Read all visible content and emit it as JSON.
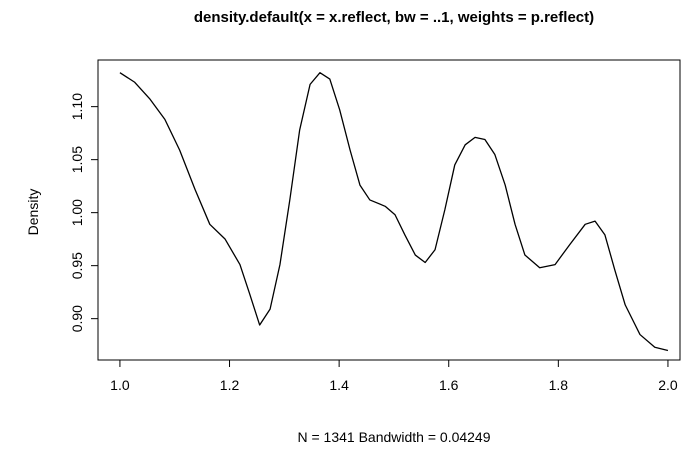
{
  "chart_data": {
    "type": "line",
    "title": "density.default(x = x.reflect, bw = ..1, weights = p.reflect)",
    "x_label": "N = 1341   Bandwidth = 0.04249",
    "y_label": "Density",
    "color": "#000000",
    "x": [
      1.0,
      1.027,
      1.055,
      1.082,
      1.109,
      1.137,
      1.164,
      1.192,
      1.219,
      1.237,
      1.255,
      1.274,
      1.292,
      1.31,
      1.328,
      1.347,
      1.365,
      1.383,
      1.401,
      1.42,
      1.438,
      1.456,
      1.484,
      1.502,
      1.52,
      1.539,
      1.557,
      1.575,
      1.593,
      1.611,
      1.63,
      1.648,
      1.666,
      1.684,
      1.703,
      1.721,
      1.739,
      1.766,
      1.794,
      1.821,
      1.849,
      1.867,
      1.885,
      1.903,
      1.922,
      1.949,
      1.976,
      2.0
    ],
    "values": [
      1.132,
      1.123,
      1.107,
      1.088,
      1.059,
      1.022,
      0.989,
      0.975,
      0.951,
      0.923,
      0.894,
      0.909,
      0.951,
      1.012,
      1.078,
      1.121,
      1.132,
      1.126,
      1.097,
      1.059,
      1.026,
      1.012,
      1.006,
      0.998,
      0.979,
      0.96,
      0.953,
      0.965,
      1.003,
      1.045,
      1.064,
      1.071,
      1.069,
      1.055,
      1.026,
      0.989,
      0.96,
      0.948,
      0.951,
      0.97,
      0.989,
      0.992,
      0.979,
      0.946,
      0.913,
      0.885,
      0.873,
      0.87
    ],
    "xlim": [
      0.96,
      2.022
    ],
    "ylim": [
      0.861,
      1.144
    ],
    "xticks": [
      {
        "value": 1.0,
        "label": "1.0"
      },
      1.2,
      1.4,
      1.6,
      1.8,
      {
        "value": 2.0,
        "label": "2.0"
      }
    ],
    "yticks": [
      {
        "value": 0.9,
        "label": "0.90"
      },
      0.95,
      {
        "value": 1.0,
        "label": "1.00"
      },
      1.05,
      {
        "value": 1.1,
        "label": "1.10"
      }
    ]
  }
}
